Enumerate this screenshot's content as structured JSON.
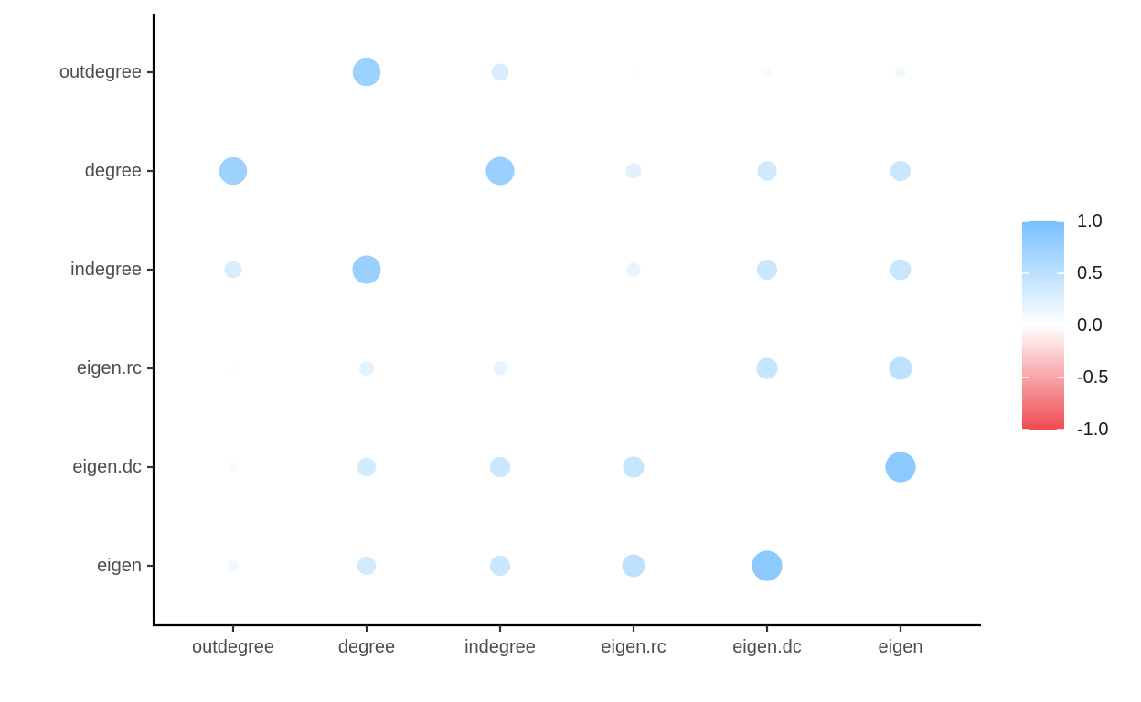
{
  "chart_data": {
    "type": "scatter",
    "subtype": "correlation-bubble-matrix",
    "title": "",
    "xlabel": "",
    "ylabel": "",
    "x_categories": [
      "outdegree",
      "degree",
      "indegree",
      "eigen.rc",
      "eigen.dc",
      "eigen"
    ],
    "y_categories": [
      "outdegree",
      "degree",
      "indegree",
      "eigen.rc",
      "eigen.dc",
      "eigen"
    ],
    "values": [
      [
        null,
        0.72,
        0.28,
        0.04,
        0.07,
        0.1
      ],
      [
        0.72,
        null,
        0.75,
        0.22,
        0.35,
        0.38
      ],
      [
        0.28,
        0.75,
        null,
        0.18,
        0.38,
        0.4
      ],
      [
        0.04,
        0.2,
        0.18,
        null,
        0.42,
        0.48
      ],
      [
        0.07,
        0.32,
        0.38,
        0.42,
        null,
        0.85
      ],
      [
        0.1,
        0.32,
        0.38,
        0.48,
        0.85,
        null
      ]
    ],
    "color_scale": {
      "min": -1.0,
      "max": 1.0,
      "low_color": "#EE4B50",
      "mid_color": "#FFFFFF",
      "high_color": "#77C0FF"
    },
    "legend": {
      "position": "right",
      "tick_labels": [
        "1.0",
        "0.5",
        "0.0",
        "-0.5",
        "-1.0"
      ],
      "tick_values": [
        1.0,
        0.5,
        0.0,
        -0.5,
        -1.0
      ]
    },
    "grid": false
  }
}
